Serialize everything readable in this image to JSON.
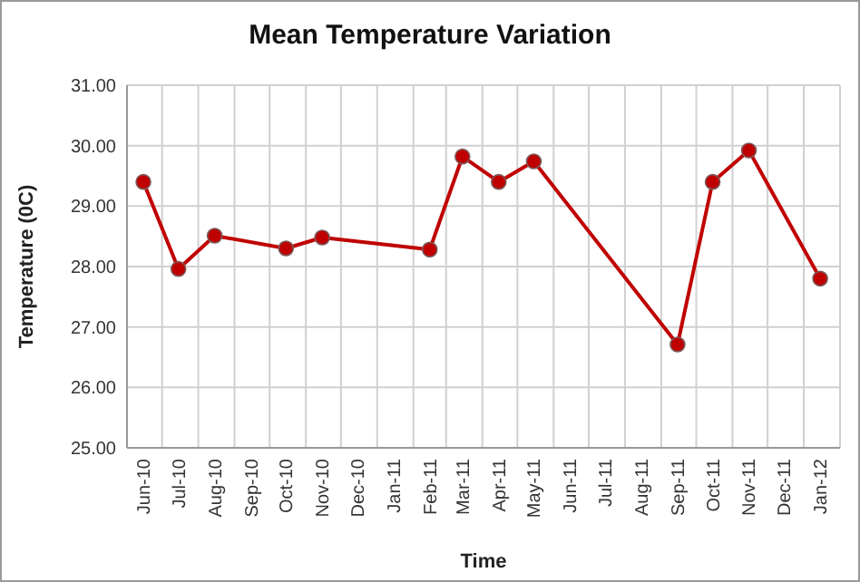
{
  "chart_data": {
    "type": "line",
    "title": "Mean Temperature Variation",
    "xlabel": "Time",
    "ylabel": "Temperature (0C)",
    "x": [
      "2010-06-15",
      "2010-07-15",
      "2010-08-15",
      "2010-10-15",
      "2010-11-15",
      "2011-02-15",
      "2011-03-15",
      "2011-04-15",
      "2011-05-15",
      "2011-09-15",
      "2011-10-15",
      "2011-11-15",
      "2012-01-15"
    ],
    "series": [
      {
        "color": "#c00000",
        "values": [
          29.4,
          27.96,
          28.51,
          28.3,
          28.48,
          28.28,
          29.82,
          29.4,
          29.74,
          26.71,
          29.4,
          29.92,
          27.8
        ]
      }
    ],
    "xlim": [
      "2010-06-01",
      "2012-02-01"
    ],
    "xticks": [
      {
        "value": "2010-06-15",
        "label": "Jun-10"
      },
      {
        "value": "2010-07-15",
        "label": "Jul-10"
      },
      {
        "value": "2010-08-15",
        "label": "Aug-10"
      },
      {
        "value": "2010-09-15",
        "label": "Sep-10"
      },
      {
        "value": "2010-10-15",
        "label": "Oct-10"
      },
      {
        "value": "2010-11-15",
        "label": "Nov-10"
      },
      {
        "value": "2010-12-15",
        "label": "Dec-10"
      },
      {
        "value": "2011-01-15",
        "label": "Jan-11"
      },
      {
        "value": "2011-02-15",
        "label": "Feb-11"
      },
      {
        "value": "2011-03-15",
        "label": "Mar-11"
      },
      {
        "value": "2011-04-15",
        "label": "Apr-11"
      },
      {
        "value": "2011-05-15",
        "label": "May-11"
      },
      {
        "value": "2011-06-15",
        "label": "Jun-11"
      },
      {
        "value": "2011-07-15",
        "label": "Jul-11"
      },
      {
        "value": "2011-08-15",
        "label": "Aug-11"
      },
      {
        "value": "2011-09-15",
        "label": "Sep-11"
      },
      {
        "value": "2011-10-15",
        "label": "Oct-11"
      },
      {
        "value": "2011-11-15",
        "label": "Nov-11"
      },
      {
        "value": "2011-12-15",
        "label": "Dec-11"
      },
      {
        "value": "2012-01-15",
        "label": "Jan-12"
      }
    ],
    "ylim": [
      25,
      31
    ],
    "yticks": [
      {
        "value": 25,
        "label": "25.00"
      },
      {
        "value": 26,
        "label": "26.00"
      },
      {
        "value": 27,
        "label": "27.00"
      },
      {
        "value": 28,
        "label": "28.00"
      },
      {
        "value": 29,
        "label": "29.00"
      },
      {
        "value": 30,
        "label": "30.00"
      },
      {
        "value": 31,
        "label": "31.00"
      }
    ],
    "grid": true,
    "marker": "circle",
    "line_style": "solid"
  }
}
